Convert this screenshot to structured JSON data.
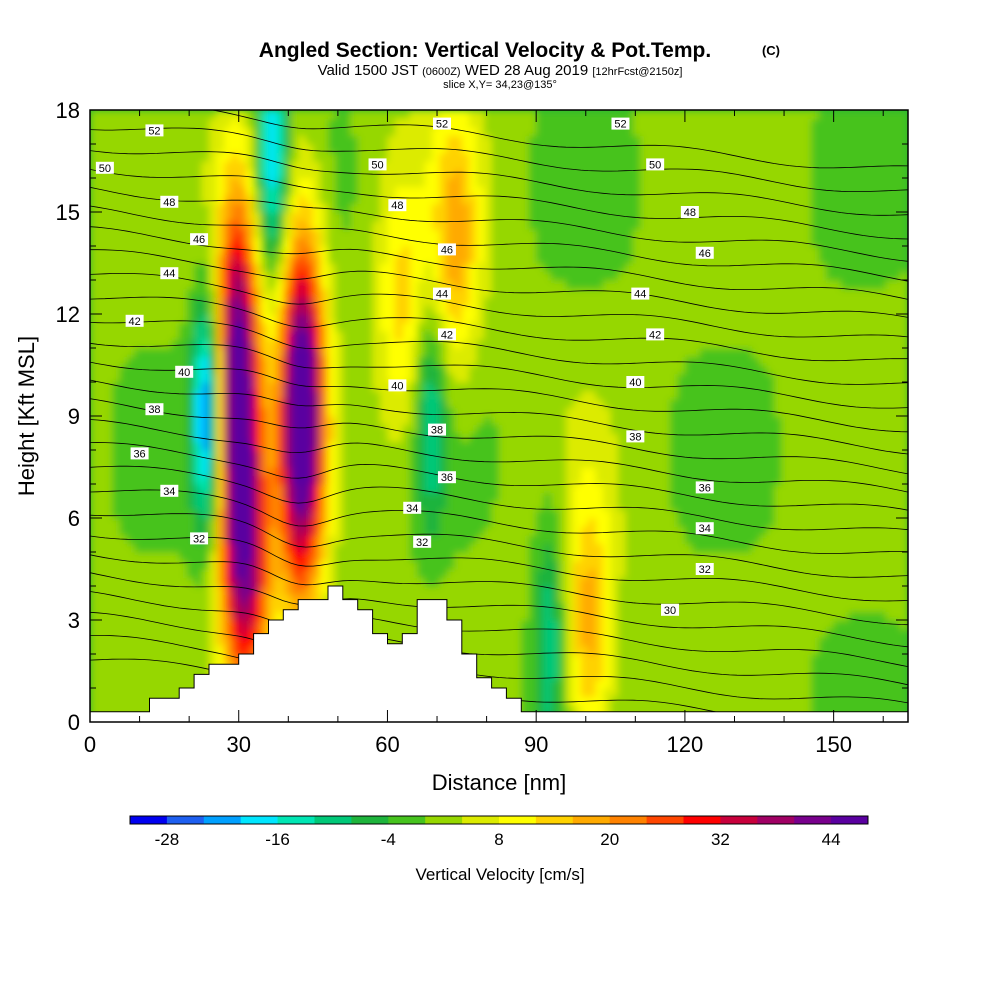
{
  "chart_data": {
    "type": "heatmap",
    "title": "Angled Section: Vertical Velocity & Pot.Temp.",
    "title_unit": "(C)",
    "subtitle": {
      "valid": "Valid 1500 JST",
      "utc": "(0600Z)",
      "date": "WED 28 Aug 2019",
      "forecast": "[12hrFcst@2150z]"
    },
    "slice": "slice X,Y= 34,23@135°",
    "xlabel": "Distance [nm]",
    "ylabel": "Height [Kft MSL]",
    "xlim": [
      0,
      165
    ],
    "ylim": [
      0,
      18
    ],
    "x_ticks": [
      "0",
      "30",
      "60",
      "90",
      "120",
      "150"
    ],
    "x_tick_values": [
      0,
      30,
      60,
      90,
      120,
      150
    ],
    "y_ticks": [
      "0",
      "3",
      "6",
      "9",
      "12",
      "15",
      "18"
    ],
    "y_tick_values": [
      0,
      3,
      6,
      9,
      12,
      15,
      18
    ],
    "colorbar": {
      "label": "Vertical Velocity [cm/s]",
      "min": -32,
      "step": 4,
      "colors": [
        "#0000f0",
        "#1e5ff0",
        "#00a0ff",
        "#00e6ff",
        "#00e6b4",
        "#00c878",
        "#1eb43c",
        "#46c31e",
        "#96d700",
        "#dceb00",
        "#ffff00",
        "#ffd200",
        "#ffaa00",
        "#ff8200",
        "#ff4600",
        "#ff0000",
        "#c8003c",
        "#a00064",
        "#78008c",
        "#5a00a0"
      ],
      "tick_labels": [
        "-28",
        "-16",
        "-4",
        "8",
        "20",
        "32",
        "44"
      ],
      "tick_values": [
        -28,
        -16,
        -4,
        8,
        20,
        32,
        44
      ]
    },
    "updraft_cores": [
      {
        "x": 29,
        "z": 10.0,
        "w": 48
      },
      {
        "x": 42,
        "z": 9.0,
        "w": 52
      },
      {
        "x": 31,
        "z": 4.0,
        "w": 30
      },
      {
        "x": 73,
        "z": 14.0,
        "w": 16
      },
      {
        "x": 62,
        "z": 12.0,
        "w": 12
      },
      {
        "x": 100,
        "z": 2.5,
        "w": 18
      }
    ],
    "downdraft_cores": [
      {
        "x": 23,
        "z": 9.0,
        "w": -28
      },
      {
        "x": 36,
        "z": 16.5,
        "w": -20
      },
      {
        "x": 68,
        "z": 9.0,
        "w": -12
      },
      {
        "x": 92,
        "z": 2.5,
        "w": -12
      }
    ],
    "theta_labels": [
      {
        "text": "52",
        "x": 13,
        "z": 17.4
      },
      {
        "text": "50",
        "x": 3,
        "z": 16.3
      },
      {
        "text": "48",
        "x": 16,
        "z": 15.3
      },
      {
        "text": "46",
        "x": 22,
        "z": 14.2
      },
      {
        "text": "44",
        "x": 16,
        "z": 13.2
      },
      {
        "text": "42",
        "x": 9,
        "z": 11.8
      },
      {
        "text": "40",
        "x": 19,
        "z": 10.3
      },
      {
        "text": "38",
        "x": 13,
        "z": 9.2
      },
      {
        "text": "36",
        "x": 10,
        "z": 7.9
      },
      {
        "text": "34",
        "x": 16,
        "z": 6.8
      },
      {
        "text": "32",
        "x": 22,
        "z": 5.4
      },
      {
        "text": "50",
        "x": 58,
        "z": 16.4
      },
      {
        "text": "48",
        "x": 62,
        "z": 15.2
      },
      {
        "text": "52",
        "x": 71,
        "z": 17.6
      },
      {
        "text": "46",
        "x": 72,
        "z": 13.9
      },
      {
        "text": "44",
        "x": 71,
        "z": 12.6
      },
      {
        "text": "42",
        "x": 72,
        "z": 11.4
      },
      {
        "text": "40",
        "x": 62,
        "z": 9.9
      },
      {
        "text": "38",
        "x": 70,
        "z": 8.6
      },
      {
        "text": "36",
        "x": 72,
        "z": 7.2
      },
      {
        "text": "34",
        "x": 65,
        "z": 6.3
      },
      {
        "text": "32",
        "x": 67,
        "z": 5.3
      },
      {
        "text": "52",
        "x": 107,
        "z": 17.6
      },
      {
        "text": "50",
        "x": 114,
        "z": 16.4
      },
      {
        "text": "48",
        "x": 121,
        "z": 15.0
      },
      {
        "text": "46",
        "x": 124,
        "z": 13.8
      },
      {
        "text": "44",
        "x": 111,
        "z": 12.6
      },
      {
        "text": "42",
        "x": 114,
        "z": 11.4
      },
      {
        "text": "40",
        "x": 110,
        "z": 10.0
      },
      {
        "text": "38",
        "x": 110,
        "z": 8.4
      },
      {
        "text": "36",
        "x": 124,
        "z": 6.9
      },
      {
        "text": "34",
        "x": 124,
        "z": 5.7
      },
      {
        "text": "32",
        "x": 124,
        "z": 4.5
      },
      {
        "text": "30",
        "x": 117,
        "z": 3.3
      }
    ],
    "terrain": {
      "x": [
        0,
        3,
        6,
        9,
        12,
        15,
        18,
        21,
        24,
        27,
        30,
        33,
        36,
        39,
        42,
        45,
        48,
        51,
        54,
        57,
        60,
        63,
        66,
        69,
        72,
        75,
        78,
        81,
        84,
        87,
        90,
        93,
        96,
        99,
        102,
        105,
        108,
        111,
        114,
        117,
        120,
        123,
        126,
        129,
        132,
        135,
        138,
        141,
        144,
        147,
        150,
        153,
        156,
        159,
        162,
        165
      ],
      "z": [
        0.3,
        0.3,
        0.3,
        0.3,
        0.7,
        0.7,
        1.0,
        1.4,
        1.7,
        1.7,
        2.0,
        2.6,
        3.0,
        3.3,
        3.6,
        3.6,
        4.0,
        3.6,
        3.3,
        2.6,
        2.3,
        2.6,
        3.6,
        3.6,
        3.0,
        2.0,
        1.3,
        1.0,
        0.7,
        0.3,
        0.3,
        0.3,
        0.3,
        0.3,
        0.3,
        0.3,
        0.3,
        0.3,
        0.3,
        0.3,
        0.3,
        0.3,
        0.3,
        0.3,
        0.3,
        0.3,
        0.3,
        0.3,
        0.3,
        0.3,
        0.3,
        0.3,
        0.3,
        0.3,
        0.3,
        0.3
      ]
    }
  }
}
